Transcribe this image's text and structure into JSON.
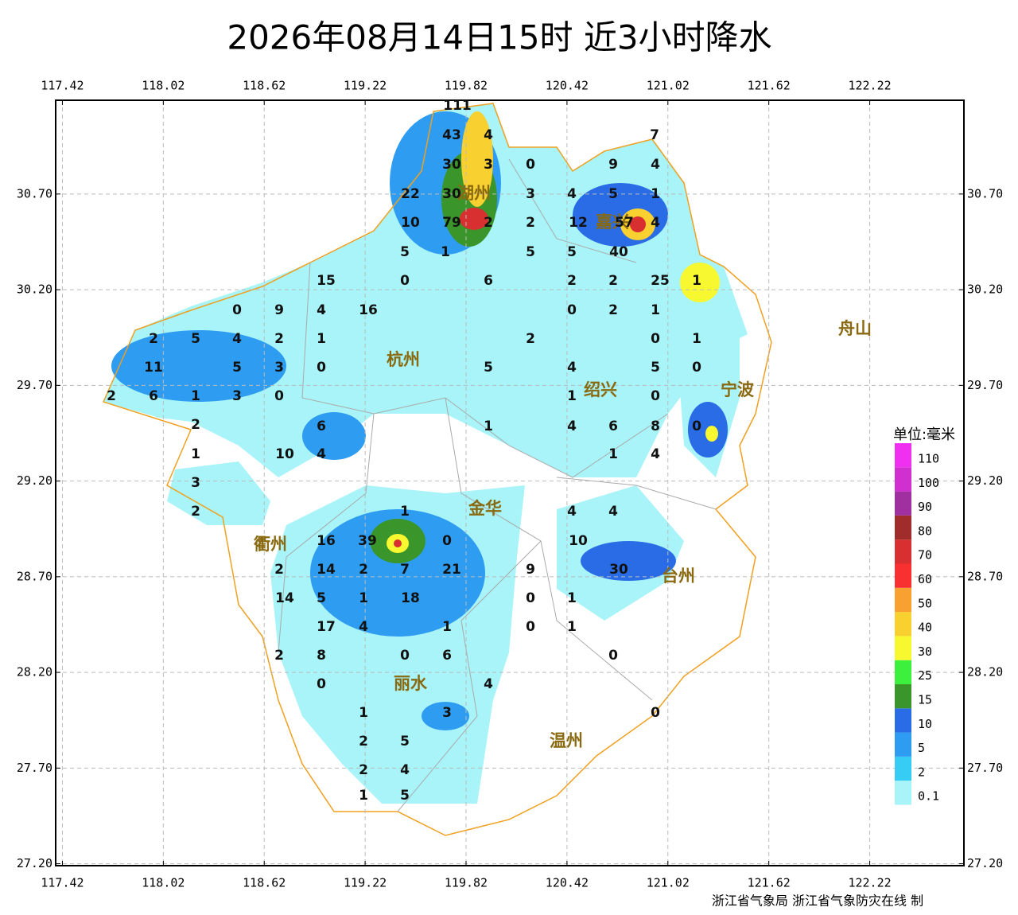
{
  "chart_data": {
    "type": "map",
    "title": "2026年08月14日15时  近3小时降水",
    "xlim": [
      117.38,
      122.78
    ],
    "ylim": [
      27.19,
      31.19
    ],
    "xticks": [
      117.42,
      118.02,
      118.62,
      119.22,
      119.82,
      120.42,
      121.02,
      121.62,
      122.22
    ],
    "yticks": [
      {
        "value": 30.7,
        "label": "30.70"
      },
      {
        "value": 30.2,
        "label": "30.20"
      },
      {
        "value": 29.7,
        "label": "29.70"
      },
      {
        "value": 29.2,
        "label": "29.20"
      },
      {
        "value": 28.7,
        "label": "28.70"
      },
      {
        "value": 28.2,
        "label": "28.20"
      },
      {
        "value": 27.7,
        "label": "27.70"
      },
      {
        "value": 27.2,
        "label": "27.20"
      }
    ],
    "grid": true,
    "cities": [
      "杭州",
      "湖州",
      "嘉兴",
      "绍兴",
      "宁波",
      "舟山",
      "金华",
      "衢州",
      "台州",
      "丽水",
      "温州"
    ],
    "stations": [
      111,
      43,
      4,
      30,
      3,
      0,
      7,
      9,
      4,
      22,
      30,
      3,
      4,
      5,
      1,
      10,
      79,
      2,
      2,
      12,
      57,
      4,
      5,
      1,
      5,
      5,
      40,
      15,
      0,
      6,
      2,
      2,
      25,
      1,
      0,
      9,
      4,
      16,
      0,
      2,
      1,
      2,
      5,
      4,
      2,
      1,
      2,
      0,
      1,
      11,
      5,
      3,
      0,
      5,
      4,
      5,
      0,
      2,
      6,
      1,
      3,
      0,
      1,
      0,
      2,
      6,
      1,
      4,
      6,
      8,
      0,
      1,
      10,
      4,
      1,
      4,
      3,
      2,
      1,
      4,
      4,
      16,
      39,
      0,
      10,
      2,
      14,
      2,
      7,
      21,
      9,
      30,
      14,
      5,
      1,
      18,
      0,
      1,
      17,
      4,
      1,
      0,
      1,
      2,
      8,
      0,
      6,
      0,
      0,
      4,
      1,
      3,
      0,
      2,
      5,
      2,
      4,
      1,
      5
    ],
    "legend": {
      "title": "单位:毫米",
      "levels": [
        0.1,
        2,
        5,
        10,
        15,
        25,
        30,
        40,
        50,
        60,
        70,
        80,
        90,
        100,
        110
      ],
      "colors": [
        "#a8f4f8",
        "#36ccf4",
        "#2e9cf0",
        "#2a6ce6",
        "#3a962a",
        "#3ef03e",
        "#f8f830",
        "#f8d030",
        "#f8a030",
        "#f83030",
        "#d83030",
        "#a02c2c",
        "#a030a0",
        "#d030d0",
        "#f030f0"
      ]
    },
    "credit": "浙江省气象局 浙江省气象防灾在线 制"
  }
}
